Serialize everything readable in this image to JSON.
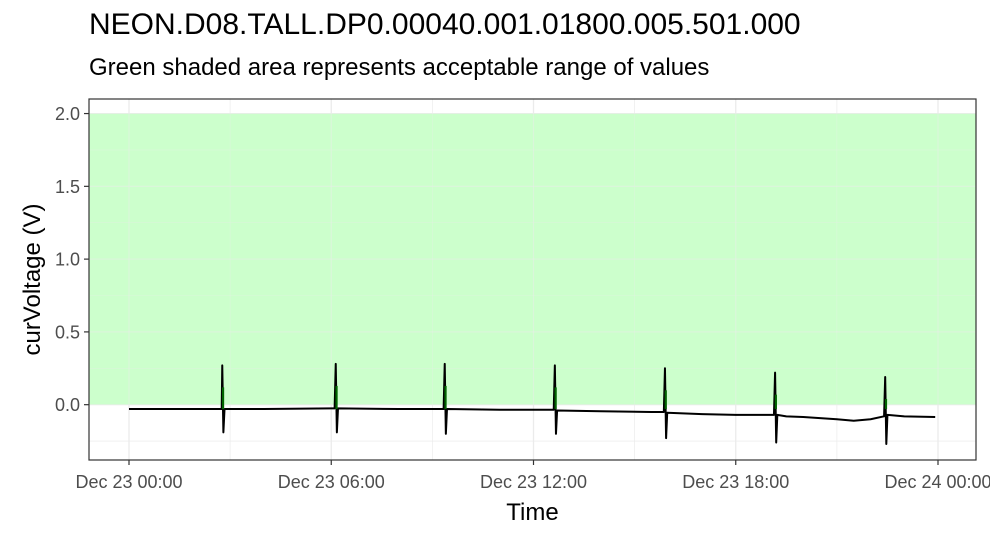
{
  "chart_data": {
    "type": "line",
    "title": "NEON.D08.TALL.DP0.00040.001.01800.005.501.000",
    "subtitle": "Green shaded area represents acceptable range of values",
    "xlabel": "Time",
    "ylabel": "curVoltage (V)",
    "xlim": [
      "2023-12-23 00:00",
      "2023-12-24 00:00"
    ],
    "ylim": [
      -0.38,
      2.1
    ],
    "x_ticks": [
      "Dec 23 00:00",
      "Dec 23 06:00",
      "Dec 23 12:00",
      "Dec 23 18:00",
      "Dec 24 00:00"
    ],
    "y_ticks": [
      "0.0",
      "0.5",
      "1.0",
      "1.5",
      "2.0"
    ],
    "y_tick_values": [
      0.0,
      0.5,
      1.0,
      1.5,
      2.0
    ],
    "acceptable_range": {
      "min": 0.0,
      "max": 2.0,
      "color": "#ccffcc"
    },
    "grid": true,
    "series": [
      {
        "line_color": "#000000",
        "spike_color": "#006400",
        "x": [
          "2023-12-23 00:00",
          "2023-12-23 02:00",
          "2023-12-23 02:45",
          "2023-12-23 02:46",
          "2023-12-23 02:48",
          "2023-12-23 02:50",
          "2023-12-23 04:00",
          "2023-12-23 06:00",
          "2023-12-23 06:06",
          "2023-12-23 06:08",
          "2023-12-23 06:10",
          "2023-12-23 06:12",
          "2023-12-23 08:00",
          "2023-12-23 09:20",
          "2023-12-23 09:22",
          "2023-12-23 09:24",
          "2023-12-23 09:26",
          "2023-12-23 11:00",
          "2023-12-23 12:00",
          "2023-12-23 12:36",
          "2023-12-23 12:38",
          "2023-12-23 12:40",
          "2023-12-23 12:42",
          "2023-12-23 14:00",
          "2023-12-23 15:30",
          "2023-12-23 15:52",
          "2023-12-23 15:54",
          "2023-12-23 15:56",
          "2023-12-23 15:58",
          "2023-12-23 17:00",
          "2023-12-23 18:00",
          "2023-12-23 19:08",
          "2023-12-23 19:10",
          "2023-12-23 19:12",
          "2023-12-23 19:14",
          "2023-12-23 19:30",
          "2023-12-23 20:00",
          "2023-12-23 21:00",
          "2023-12-23 21:30",
          "2023-12-23 22:00",
          "2023-12-23 22:24",
          "2023-12-23 22:26",
          "2023-12-23 22:28",
          "2023-12-23 22:30",
          "2023-12-23 23:00",
          "2023-12-23 23:55"
        ],
        "y": [
          -0.03,
          -0.03,
          -0.03,
          0.27,
          -0.19,
          -0.03,
          -0.03,
          -0.025,
          -0.025,
          0.28,
          -0.19,
          -0.025,
          -0.03,
          -0.03,
          0.28,
          -0.2,
          -0.03,
          -0.035,
          -0.035,
          -0.035,
          0.27,
          -0.2,
          -0.04,
          -0.045,
          -0.05,
          -0.05,
          0.25,
          -0.23,
          -0.055,
          -0.065,
          -0.07,
          -0.07,
          0.22,
          -0.26,
          -0.07,
          -0.08,
          -0.085,
          -0.1,
          -0.11,
          -0.1,
          -0.08,
          0.19,
          -0.27,
          -0.07,
          -0.08,
          -0.085
        ]
      }
    ]
  }
}
